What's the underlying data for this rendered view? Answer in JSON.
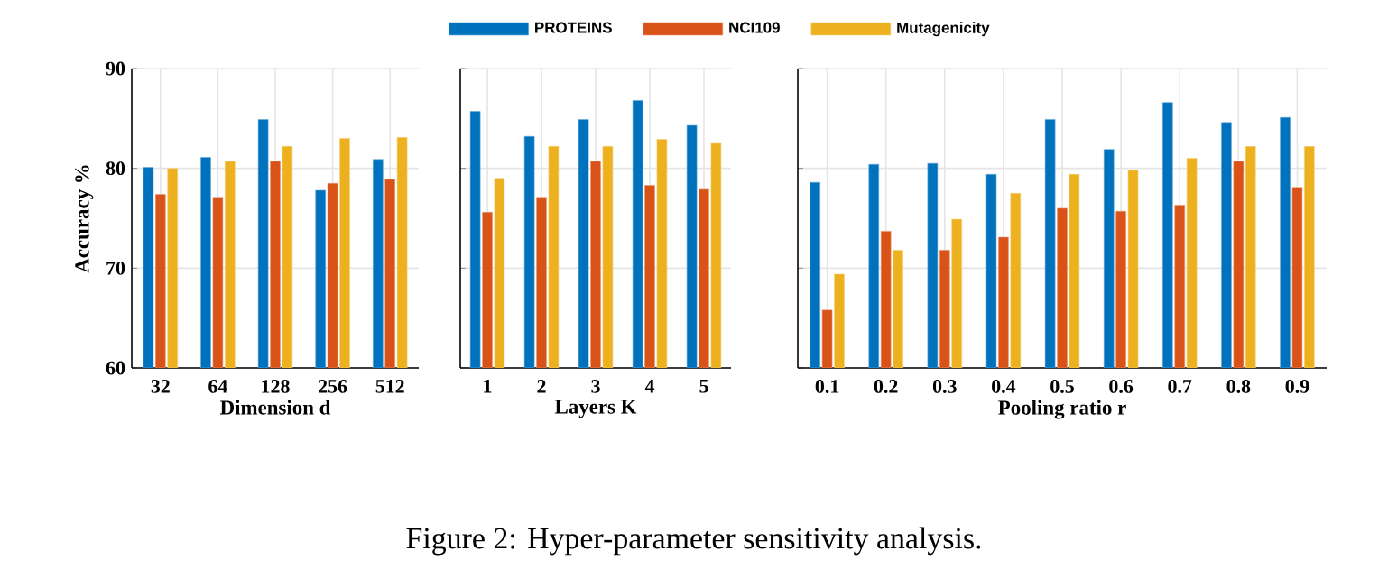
{
  "chart_data": [
    {
      "type": "bar",
      "xlabel": "Dimension d",
      "ylabel": "Accuracy %",
      "categories": [
        "32",
        "64",
        "128",
        "256",
        "512"
      ],
      "ylim": [
        60,
        90
      ],
      "yticks": [
        60,
        70,
        80,
        90
      ],
      "grid": true,
      "legend": "top",
      "annotations": [
        "Figure 2: Hyper-parameter sensitivity analysis."
      ],
      "series": [
        {
          "name": "PROTEINS",
          "color": "#0072bd",
          "values": [
            80.1,
            81.1,
            84.9,
            77.8,
            80.9
          ]
        },
        {
          "name": "NCI109",
          "color": "#d95319",
          "values": [
            77.4,
            77.1,
            80.7,
            78.5,
            78.9
          ]
        },
        {
          "name": "Mutagenicity",
          "color": "#edb120",
          "values": [
            80.0,
            80.7,
            82.2,
            83.0,
            83.1
          ]
        }
      ]
    },
    {
      "type": "bar",
      "xlabel": "Layers K",
      "categories": [
        "1",
        "2",
        "3",
        "4",
        "5"
      ],
      "ylim": [
        60,
        90
      ],
      "yticks": [
        60,
        70,
        80,
        90
      ],
      "grid": true,
      "tick_labels": "x",
      "series": [
        {
          "color": "#0072bd",
          "values": [
            85.7,
            83.2,
            84.9,
            86.8,
            84.3
          ]
        },
        {
          "color": "#d95319",
          "values": [
            75.6,
            77.1,
            80.7,
            78.3,
            77.9
          ]
        },
        {
          "color": "#edb120",
          "values": [
            79.0,
            82.2,
            82.2,
            82.9,
            82.5
          ]
        }
      ]
    },
    {
      "type": "bar",
      "xlabel": "Pooling ratio r",
      "categories": [
        "0.1",
        "0.2",
        "0.3",
        "0.4",
        "0.5",
        "0.6",
        "0.7",
        "0.8",
        "0.9"
      ],
      "ylim": [
        60,
        90
      ],
      "yticks": [
        60,
        70,
        80,
        90
      ],
      "grid": true,
      "tick_labels": "x",
      "series": [
        {
          "color": "#0072bd",
          "values": [
            78.6,
            80.4,
            80.5,
            79.4,
            84.9,
            81.9,
            86.6,
            84.6,
            85.1
          ]
        },
        {
          "color": "#d95319",
          "values": [
            65.8,
            73.7,
            71.8,
            73.1,
            76.0,
            75.7,
            76.3,
            80.7,
            78.1
          ]
        },
        {
          "color": "#edb120",
          "values": [
            69.4,
            71.8,
            74.9,
            77.5,
            79.4,
            79.8,
            81.0,
            82.2,
            82.2
          ]
        }
      ]
    }
  ]
}
